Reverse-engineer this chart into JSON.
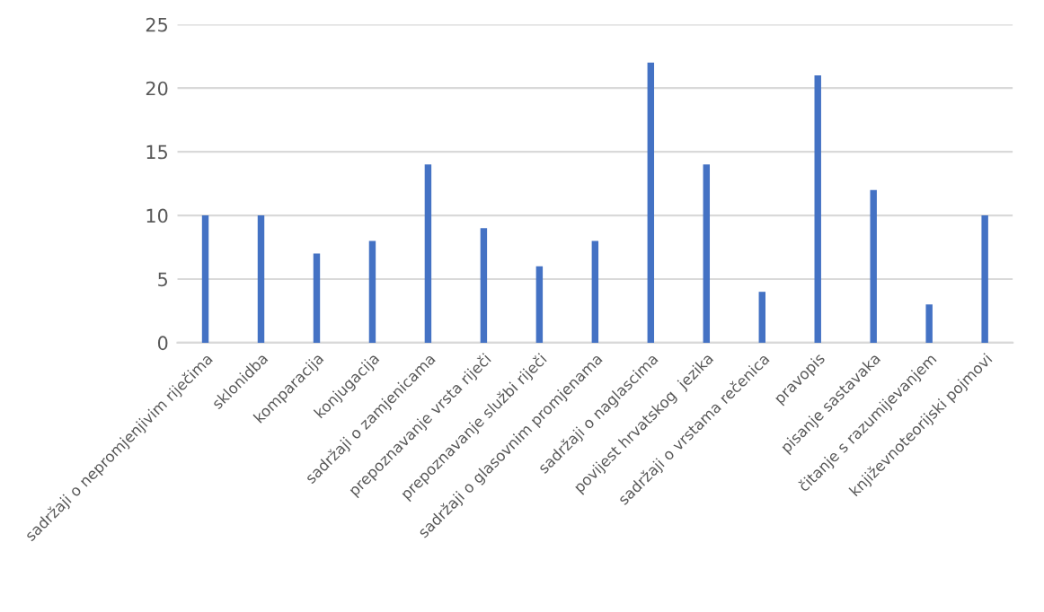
{
  "chart_data": {
    "type": "bar",
    "categories": [
      "sadržaji o nepromjenjivim riječima",
      "sklonidba",
      "komparacija",
      "konjugacija",
      "sadržaji o zamjenicama",
      "prepoznavanje vrsta riječi",
      "prepoznavanje službi riječi",
      "sadržaji o glasovnim promjenama",
      "sadržaji o naglascima",
      "povijest hrvatskog  jezika",
      "sadržaji o vrstama rečenica",
      "pravopis",
      "pisanje sastavaka",
      "čitanje s razumijevanjem",
      "književnoteorijski pojmovi"
    ],
    "values": [
      10,
      10,
      7,
      8,
      14,
      9,
      6,
      8,
      22,
      14,
      4,
      21,
      12,
      3,
      10
    ],
    "color": "#4472c4",
    "ylim": [
      0,
      25
    ],
    "yticks": [
      0,
      5,
      10,
      15,
      20,
      25
    ],
    "grid": "y"
  }
}
